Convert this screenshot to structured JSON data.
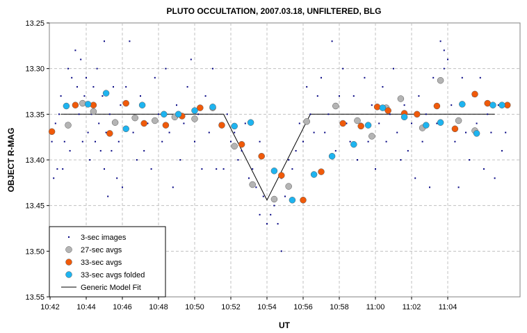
{
  "chart_data": {
    "type": "scatter",
    "title": "PLUTO OCCULTATION, 2007.03.18, UNFILTERED, BLG",
    "xlabel": "UT",
    "ylabel": "OBJECT R-MAG",
    "x_unit": "minutes after 10:42 UT",
    "xlim": [
      0,
      25.5
    ],
    "ylim": [
      13.25,
      13.55
    ],
    "y_inverted": true,
    "grid": true,
    "legend_position": "bottom-left",
    "x_ticks": [
      {
        "v": 0,
        "label": "10:42"
      },
      {
        "v": 2,
        "label": "10:44"
      },
      {
        "v": 4,
        "label": "10:46"
      },
      {
        "v": 6,
        "label": "10:48"
      },
      {
        "v": 8,
        "label": "10:50"
      },
      {
        "v": 10,
        "label": "10:52"
      },
      {
        "v": 12,
        "label": "10:54"
      },
      {
        "v": 14,
        "label": "10:56"
      },
      {
        "v": 16,
        "label": "10:58"
      },
      {
        "v": 18,
        "label": "11:00"
      },
      {
        "v": 20,
        "label": "11:02"
      },
      {
        "v": 22,
        "label": "11:04"
      }
    ],
    "y_ticks": [
      {
        "v": 13.25,
        "label": "13.25"
      },
      {
        "v": 13.3,
        "label": "13.30"
      },
      {
        "v": 13.35,
        "label": "13.35"
      },
      {
        "v": 13.4,
        "label": "13.40"
      },
      {
        "v": 13.45,
        "label": "13.45"
      },
      {
        "v": 13.5,
        "label": "13.50"
      },
      {
        "v": 13.55,
        "label": "13.55"
      }
    ],
    "series": [
      {
        "name": "3-sec images",
        "style": "dot",
        "color": "#000080",
        "points": [
          [
            0.1,
            13.38
          ],
          [
            0.2,
            13.42
          ],
          [
            0.3,
            13.36
          ],
          [
            0.4,
            13.41
          ],
          [
            0.5,
            13.35
          ],
          [
            0.6,
            13.33
          ],
          [
            0.7,
            13.41
          ],
          [
            0.8,
            13.38
          ],
          [
            0.9,
            13.36
          ],
          [
            1.0,
            13.3
          ],
          [
            1.1,
            13.39
          ],
          [
            1.2,
            13.31
          ],
          [
            1.3,
            13.34
          ],
          [
            1.4,
            13.28
          ],
          [
            1.5,
            13.32
          ],
          [
            1.6,
            13.35
          ],
          [
            1.7,
            13.29
          ],
          [
            1.8,
            13.38
          ],
          [
            1.9,
            13.33
          ],
          [
            2.0,
            13.31
          ],
          [
            2.1,
            13.37
          ],
          [
            2.2,
            13.4
          ],
          [
            2.3,
            13.35
          ],
          [
            2.4,
            13.32
          ],
          [
            2.5,
            13.38
          ],
          [
            2.6,
            13.3
          ],
          [
            2.7,
            13.36
          ],
          [
            2.8,
            13.39
          ],
          [
            2.9,
            13.33
          ],
          [
            3.0,
            13.41
          ],
          [
            3.1,
            13.37
          ],
          [
            3.2,
            13.44
          ],
          [
            3.3,
            13.35
          ],
          [
            3.4,
            13.39
          ],
          [
            3.5,
            13.32
          ],
          [
            3.6,
            13.36
          ],
          [
            3.7,
            13.42
          ],
          [
            3.8,
            13.38
          ],
          [
            3.9,
            13.34
          ],
          [
            4.0,
            13.43
          ],
          [
            4.2,
            13.32
          ],
          [
            4.4,
            13.27
          ],
          [
            4.6,
            13.37
          ],
          [
            4.8,
            13.4
          ],
          [
            5.0,
            13.33
          ],
          [
            5.2,
            13.39
          ],
          [
            5.4,
            13.36
          ],
          [
            5.6,
            13.41
          ],
          [
            5.8,
            13.31
          ],
          [
            6.0,
            13.35
          ],
          [
            6.2,
            13.38
          ],
          [
            6.4,
            13.3
          ],
          [
            6.6,
            13.37
          ],
          [
            6.8,
            13.43
          ],
          [
            7.0,
            13.34
          ],
          [
            7.2,
            13.4
          ],
          [
            7.4,
            13.36
          ],
          [
            7.6,
            13.32
          ],
          [
            7.8,
            13.29
          ],
          [
            8.0,
            13.38
          ],
          [
            8.2,
            13.35
          ],
          [
            8.4,
            13.41
          ],
          [
            8.6,
            13.33
          ],
          [
            8.8,
            13.37
          ],
          [
            9.0,
            13.3
          ],
          [
            9.2,
            13.41
          ],
          [
            9.4,
            13.36
          ],
          [
            9.6,
            13.41
          ],
          [
            9.8,
            13.35
          ],
          [
            10.0,
            13.38
          ],
          [
            10.2,
            13.37
          ],
          [
            10.4,
            13.4
          ],
          [
            10.6,
            13.39
          ],
          [
            10.8,
            13.36
          ],
          [
            11.0,
            13.42
          ],
          [
            11.2,
            13.41
          ],
          [
            11.4,
            13.43
          ],
          [
            11.6,
            13.46
          ],
          [
            11.8,
            13.44
          ],
          [
            12.0,
            13.47
          ],
          [
            12.2,
            13.46
          ],
          [
            12.4,
            13.45
          ],
          [
            12.6,
            13.47
          ],
          [
            12.8,
            13.42
          ],
          [
            13.0,
            13.44
          ],
          [
            13.2,
            13.4
          ],
          [
            13.4,
            13.41
          ],
          [
            13.6,
            13.39
          ],
          [
            13.8,
            13.36
          ],
          [
            14.0,
            13.38
          ],
          [
            14.2,
            13.32
          ],
          [
            14.4,
            13.35
          ],
          [
            14.6,
            13.37
          ],
          [
            14.8,
            13.33
          ],
          [
            15.0,
            13.31
          ],
          [
            15.2,
            13.37
          ],
          [
            15.4,
            13.35
          ],
          [
            15.6,
            13.27
          ],
          [
            15.8,
            13.39
          ],
          [
            16.0,
            13.33
          ],
          [
            16.2,
            13.3
          ],
          [
            16.4,
            13.36
          ],
          [
            16.6,
            13.38
          ],
          [
            16.8,
            13.33
          ],
          [
            17.0,
            13.4
          ],
          [
            17.2,
            13.36
          ],
          [
            17.4,
            13.31
          ],
          [
            17.6,
            13.38
          ],
          [
            17.8,
            13.34
          ],
          [
            18.0,
            13.41
          ],
          [
            18.2,
            13.36
          ],
          [
            18.4,
            13.32
          ],
          [
            18.6,
            13.38
          ],
          [
            18.8,
            13.35
          ],
          [
            19.0,
            13.3
          ],
          [
            19.2,
            13.37
          ],
          [
            19.4,
            13.4
          ],
          [
            19.6,
            13.34
          ],
          [
            19.8,
            13.39
          ],
          [
            20.0,
            13.36
          ],
          [
            20.2,
            13.42
          ],
          [
            20.4,
            13.33
          ],
          [
            20.6,
            13.38
          ],
          [
            20.8,
            13.35
          ],
          [
            21.0,
            13.43
          ],
          [
            21.2,
            13.31
          ],
          [
            21.4,
            13.36
          ],
          [
            21.6,
            13.27
          ],
          [
            21.8,
            13.3
          ],
          [
            22.0,
            13.29
          ],
          [
            22.2,
            13.34
          ],
          [
            22.4,
            13.38
          ],
          [
            22.6,
            13.43
          ],
          [
            22.8,
            13.31
          ],
          [
            23.0,
            13.37
          ],
          [
            23.2,
            13.4
          ],
          [
            23.4,
            13.33
          ],
          [
            23.6,
            13.36
          ],
          [
            23.8,
            13.31
          ],
          [
            24.0,
            13.41
          ],
          [
            24.2,
            13.35
          ],
          [
            24.4,
            13.37
          ],
          [
            24.6,
            13.42
          ],
          [
            24.8,
            13.34
          ],
          [
            25.0,
            13.39
          ],
          [
            25.2,
            13.37
          ],
          [
            12.8,
            13.5
          ],
          [
            11.6,
            13.38
          ],
          [
            3.0,
            13.27
          ],
          [
            21.8,
            13.28
          ]
        ]
      },
      {
        "name": "27-sec avgs",
        "style": "circle",
        "color": "#b4b4b4",
        "points": [
          [
            1.0,
            13.362
          ],
          [
            1.8,
            13.338
          ],
          [
            2.4,
            13.347
          ],
          [
            3.6,
            13.359
          ],
          [
            4.7,
            13.354
          ],
          [
            5.8,
            13.357
          ],
          [
            6.9,
            13.353
          ],
          [
            8.0,
            13.355
          ],
          [
            9.0,
            13.343
          ],
          [
            10.2,
            13.385
          ],
          [
            11.2,
            13.427
          ],
          [
            12.4,
            13.443
          ],
          [
            13.2,
            13.429
          ],
          [
            14.2,
            13.358
          ],
          [
            15.8,
            13.341
          ],
          [
            17.0,
            13.357
          ],
          [
            17.8,
            13.374
          ],
          [
            18.6,
            13.343
          ],
          [
            19.4,
            13.333
          ],
          [
            20.6,
            13.365
          ],
          [
            21.6,
            13.313
          ],
          [
            22.6,
            13.357
          ],
          [
            23.5,
            13.368
          ]
        ]
      },
      {
        "name": "33-sec avgs",
        "style": "circle",
        "color": "#f05a0a",
        "points": [
          [
            0.1,
            13.369
          ],
          [
            1.4,
            13.34
          ],
          [
            2.4,
            13.34
          ],
          [
            3.3,
            13.371
          ],
          [
            4.2,
            13.338
          ],
          [
            5.2,
            13.36
          ],
          [
            6.4,
            13.362
          ],
          [
            7.3,
            13.352
          ],
          [
            8.3,
            13.343
          ],
          [
            9.5,
            13.362
          ],
          [
            10.6,
            13.383
          ],
          [
            11.7,
            13.396
          ],
          [
            12.8,
            13.417
          ],
          [
            14.0,
            13.444
          ],
          [
            15.0,
            13.413
          ],
          [
            16.2,
            13.36
          ],
          [
            17.2,
            13.363
          ],
          [
            18.1,
            13.342
          ],
          [
            18.7,
            13.346
          ],
          [
            19.6,
            13.349
          ],
          [
            20.3,
            13.35
          ],
          [
            21.4,
            13.341
          ],
          [
            22.4,
            13.366
          ],
          [
            23.5,
            13.328
          ],
          [
            24.2,
            13.338
          ],
          [
            25.3,
            13.34
          ]
        ]
      },
      {
        "name": "33-sec avgs folded",
        "style": "circle",
        "color": "#1eb4f0",
        "points": [
          [
            0.9,
            13.341
          ],
          [
            2.1,
            13.339
          ],
          [
            3.1,
            13.327
          ],
          [
            4.2,
            13.366
          ],
          [
            5.1,
            13.34
          ],
          [
            6.3,
            13.35
          ],
          [
            7.1,
            13.35
          ],
          [
            8.0,
            13.346
          ],
          [
            9.0,
            13.342
          ],
          [
            10.2,
            13.363
          ],
          [
            11.1,
            13.359
          ],
          [
            12.4,
            13.412
          ],
          [
            13.4,
            13.444
          ],
          [
            14.6,
            13.416
          ],
          [
            15.6,
            13.396
          ],
          [
            16.8,
            13.383
          ],
          [
            17.6,
            13.362
          ],
          [
            18.4,
            13.343
          ],
          [
            19.6,
            13.353
          ],
          [
            20.8,
            13.362
          ],
          [
            21.6,
            13.359
          ],
          [
            22.8,
            13.339
          ],
          [
            23.6,
            13.371
          ],
          [
            24.5,
            13.34
          ],
          [
            25.0,
            13.34
          ]
        ]
      },
      {
        "name": "Generic Model Fit",
        "style": "line",
        "color": "#000000",
        "points": [
          [
            0.6,
            13.35
          ],
          [
            9.6,
            13.35
          ],
          [
            12.0,
            13.444
          ],
          [
            14.4,
            13.35
          ],
          [
            24.6,
            13.35
          ]
        ]
      }
    ]
  }
}
